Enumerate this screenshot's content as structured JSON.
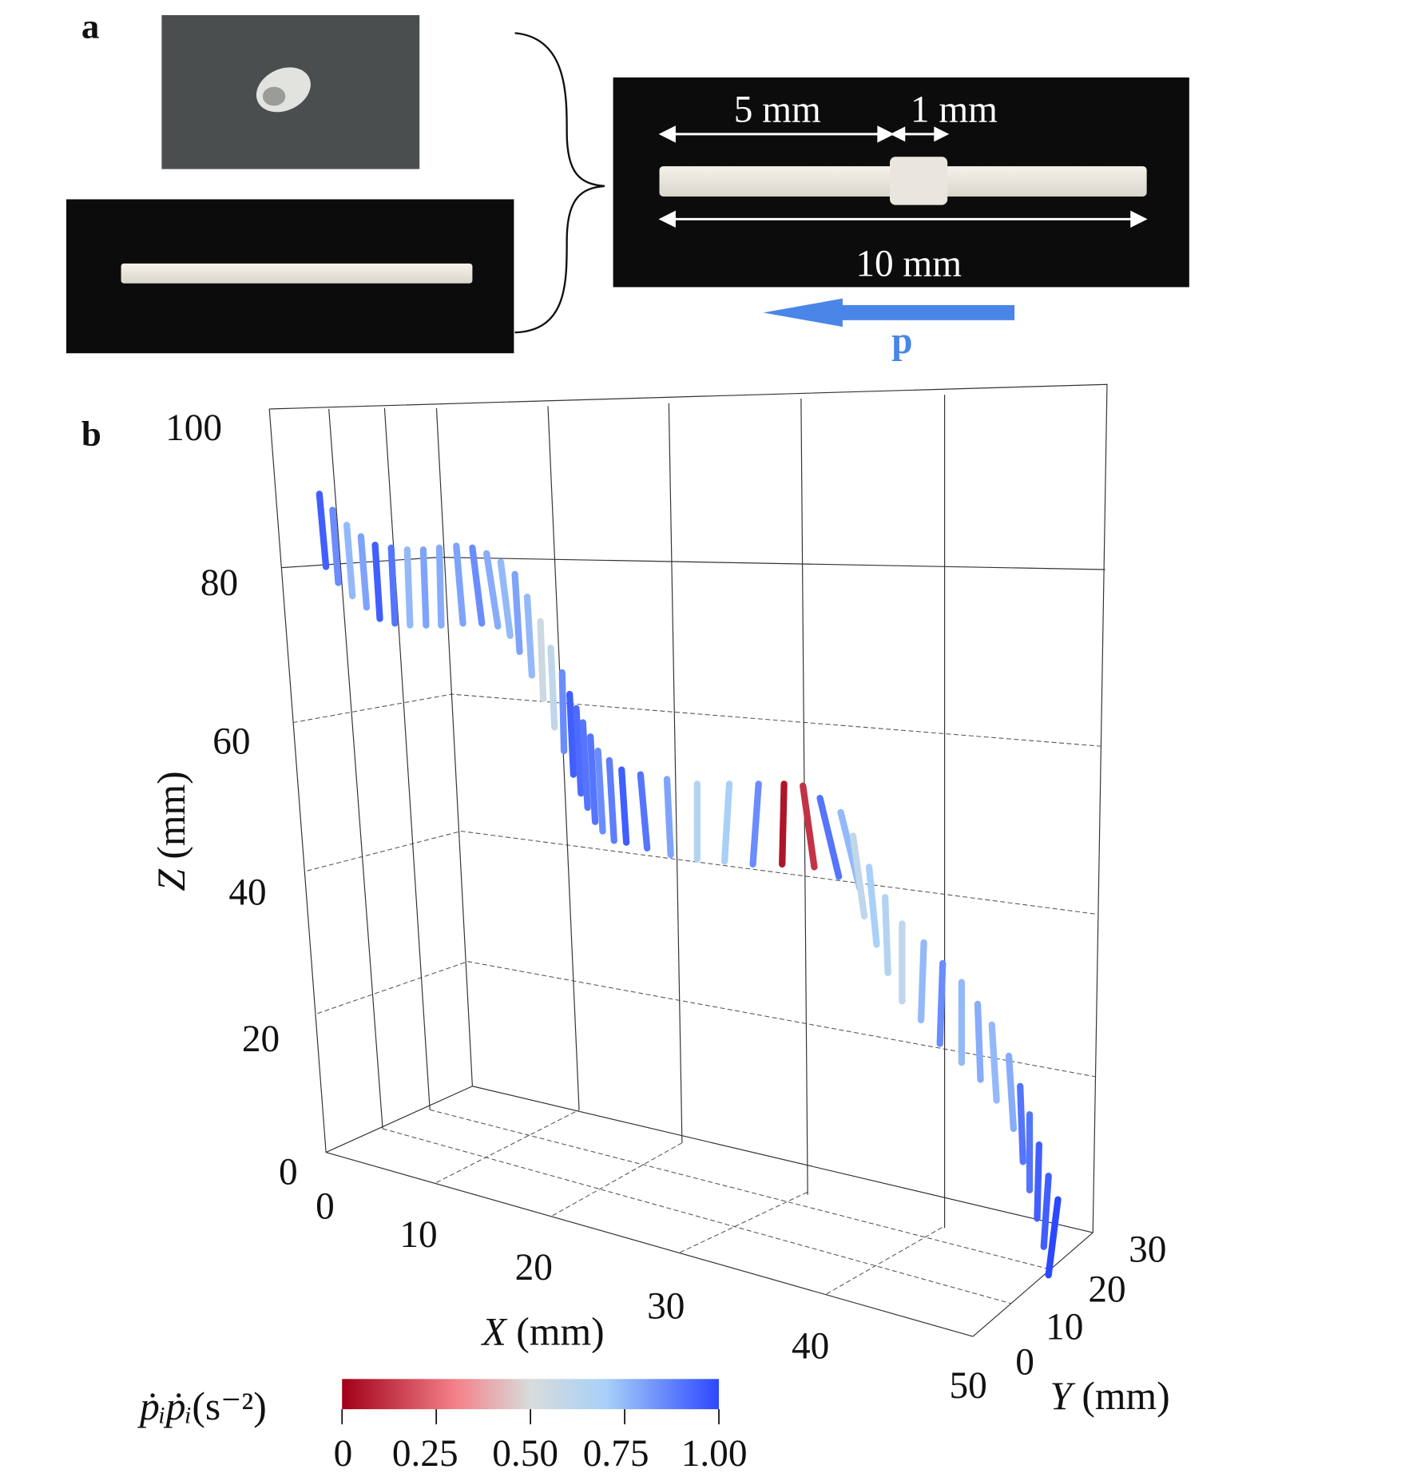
{
  "panels": {
    "a": "a",
    "b": "b"
  },
  "photo": {
    "dim_5": "5 mm",
    "dim_1": "1 mm",
    "dim_10": "10 mm",
    "arrow_label": "p",
    "arrow_color": "#4a86e8"
  },
  "chart_data": {
    "type": "3d-scatter",
    "xlabel_var": "X",
    "xlabel_unit": " (mm)",
    "ylabel_var": "Y",
    "ylabel_unit": " (mm)",
    "zlabel_var": "Z",
    "zlabel_unit": " (mm)",
    "x_ticks": [
      "0",
      "10",
      "20",
      "30",
      "40",
      "50"
    ],
    "y_ticks": [
      "0",
      "10",
      "20",
      "30"
    ],
    "z_ticks": [
      "0",
      "20",
      "40",
      "60",
      "80",
      "100"
    ],
    "xlim": [
      0,
      50
    ],
    "ylim": [
      0,
      30
    ],
    "zlim": [
      0,
      100
    ],
    "grid": true,
    "colorbar": {
      "label_main": "ṗᵢṗᵢ",
      "label_unit": "(s⁻²)",
      "ticks": [
        "0",
        "0.25",
        "0.50",
        "0.75",
        "1.00"
      ],
      "range": [
        0,
        1
      ],
      "colors": [
        "#a00018",
        "#f48088",
        "#d8dcdc",
        "#a8d0f8",
        "#2c48ff"
      ]
    },
    "rod_values": [
      0.95,
      0.85,
      0.75,
      0.8,
      0.95,
      0.9,
      0.75,
      0.8,
      0.78,
      0.8,
      0.85,
      0.78,
      0.75,
      0.8,
      0.75,
      0.55,
      0.6,
      0.85,
      0.95,
      0.92,
      0.9,
      0.9,
      0.85,
      0.88,
      0.95,
      0.9,
      0.8,
      0.65,
      0.7,
      0.85,
      0.05,
      0.12,
      0.9,
      0.75,
      0.6,
      0.7,
      0.65,
      0.6,
      0.75,
      0.85,
      0.75,
      0.78,
      0.75,
      0.78,
      0.9,
      0.9,
      0.95,
      0.95,
      1.0
    ]
  }
}
